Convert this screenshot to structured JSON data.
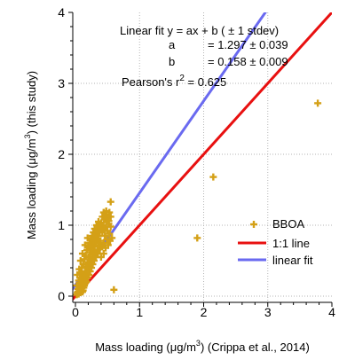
{
  "chart_data": {
    "type": "scatter",
    "xlabel_main": "Mass loading (μg/m",
    "xlabel_sup": "3",
    "xlabel_tail": ") (Crippa et al., 2014)",
    "ylabel_main": "Mass loading (μg/m",
    "ylabel_sup": "3",
    "ylabel_tail": ") (this study)",
    "xlim": [
      -0.05,
      4.0
    ],
    "ylim": [
      -0.05,
      4.0
    ],
    "xticks": [
      0,
      1,
      2,
      3,
      4
    ],
    "yticks": [
      0,
      1,
      2,
      3,
      4
    ],
    "grid": true,
    "legend_position": "lower-right",
    "annotations": {
      "fit_title": "Linear fit y = ax + b  ( ± 1 stdev)",
      "a_label": "a",
      "a_value": "= 1.297 ± 0.039",
      "b_label": "b",
      "b_value": "= 0.158 ± 0.009",
      "r2_prefix": "Pearson's r",
      "r2_sup": "2",
      "r2_value": " = 0.625"
    },
    "series": [
      {
        "name": "BBOA",
        "kind": "marker",
        "color": "#d4a017",
        "points": [
          [
            0.02,
            0.02
          ],
          [
            0.03,
            0.05
          ],
          [
            0.05,
            0.03
          ],
          [
            0.04,
            0.1
          ],
          [
            0.06,
            0.08
          ],
          [
            0.08,
            0.05
          ],
          [
            0.02,
            0.15
          ],
          [
            0.07,
            0.18
          ],
          [
            0.1,
            0.12
          ],
          [
            0.12,
            0.08
          ],
          [
            0.05,
            0.22
          ],
          [
            0.09,
            0.25
          ],
          [
            0.11,
            0.2
          ],
          [
            0.14,
            0.15
          ],
          [
            0.03,
            0.3
          ],
          [
            0.08,
            0.32
          ],
          [
            0.13,
            0.28
          ],
          [
            0.16,
            0.22
          ],
          [
            0.06,
            0.38
          ],
          [
            0.1,
            0.4
          ],
          [
            0.15,
            0.35
          ],
          [
            0.18,
            0.3
          ],
          [
            0.12,
            0.45
          ],
          [
            0.17,
            0.42
          ],
          [
            0.2,
            0.38
          ],
          [
            0.08,
            0.5
          ],
          [
            0.14,
            0.52
          ],
          [
            0.19,
            0.48
          ],
          [
            0.22,
            0.44
          ],
          [
            0.16,
            0.58
          ],
          [
            0.21,
            0.55
          ],
          [
            0.24,
            0.5
          ],
          [
            0.11,
            0.6
          ],
          [
            0.18,
            0.65
          ],
          [
            0.23,
            0.62
          ],
          [
            0.26,
            0.58
          ],
          [
            0.2,
            0.7
          ],
          [
            0.25,
            0.68
          ],
          [
            0.28,
            0.64
          ],
          [
            0.15,
            0.72
          ],
          [
            0.22,
            0.75
          ],
          [
            0.27,
            0.73
          ],
          [
            0.3,
            0.7
          ],
          [
            0.24,
            0.8
          ],
          [
            0.29,
            0.78
          ],
          [
            0.32,
            0.75
          ],
          [
            0.19,
            0.82
          ],
          [
            0.26,
            0.85
          ],
          [
            0.31,
            0.83
          ],
          [
            0.34,
            0.8
          ],
          [
            0.28,
            0.9
          ],
          [
            0.33,
            0.88
          ],
          [
            0.36,
            0.85
          ],
          [
            0.3,
            0.95
          ],
          [
            0.35,
            0.93
          ],
          [
            0.38,
            0.9
          ],
          [
            0.33,
            1.0
          ],
          [
            0.37,
            0.98
          ],
          [
            0.4,
            0.95
          ],
          [
            0.36,
            1.05
          ],
          [
            0.4,
            1.03
          ],
          [
            0.43,
            1.0
          ],
          [
            0.45,
            1.08
          ],
          [
            0.48,
            1.05
          ],
          [
            0.5,
            1.1
          ],
          [
            0.42,
            1.12
          ],
          [
            0.47,
            1.15
          ],
          [
            0.52,
            1.02
          ],
          [
            0.55,
            0.98
          ],
          [
            0.5,
            0.92
          ],
          [
            0.53,
            0.88
          ],
          [
            0.46,
            0.85
          ],
          [
            0.49,
            0.8
          ],
          [
            0.44,
            0.75
          ],
          [
            0.41,
            0.7
          ],
          [
            0.38,
            0.66
          ],
          [
            0.35,
            0.6
          ],
          [
            0.32,
            0.55
          ],
          [
            0.29,
            0.5
          ],
          [
            0.27,
            0.45
          ],
          [
            0.25,
            0.4
          ],
          [
            0.23,
            0.35
          ],
          [
            0.21,
            0.3
          ],
          [
            0.19,
            0.26
          ],
          [
            0.17,
            0.2
          ],
          [
            0.15,
            0.18
          ],
          [
            0.13,
            0.12
          ],
          [
            0.11,
            0.06
          ],
          [
            0.4,
            0.55
          ],
          [
            0.44,
            0.6
          ],
          [
            0.47,
            0.68
          ],
          [
            0.51,
            0.72
          ],
          [
            0.54,
            0.78
          ],
          [
            0.57,
            0.82
          ],
          [
            0.42,
            0.9
          ],
          [
            0.39,
            0.78
          ],
          [
            0.36,
            0.72
          ],
          [
            0.34,
            0.65
          ],
          [
            0.31,
            0.62
          ],
          [
            0.45,
            0.95
          ],
          [
            0.48,
            0.98
          ],
          [
            0.52,
            1.06
          ],
          [
            0.55,
            1.12
          ],
          [
            0.53,
            1.18
          ],
          [
            0.48,
            1.2
          ],
          [
            0.44,
            1.18
          ],
          [
            0.28,
            0.55
          ],
          [
            0.26,
            0.6
          ],
          [
            0.22,
            0.52
          ],
          [
            0.2,
            0.45
          ],
          [
            0.18,
            0.4
          ],
          [
            0.16,
            0.34
          ],
          [
            0.14,
            0.28
          ],
          [
            0.12,
            0.24
          ],
          [
            0.1,
            0.18
          ],
          [
            0.08,
            0.14
          ],
          [
            0.06,
            0.12
          ],
          [
            0.04,
            0.06
          ],
          [
            0.09,
            0.3
          ],
          [
            0.07,
            0.26
          ],
          [
            0.55,
            1.33
          ],
          [
            0.6,
            0.09
          ],
          [
            1.9,
            0.82
          ],
          [
            2.15,
            1.68
          ],
          [
            3.78,
            2.72
          ]
        ]
      },
      {
        "name": "1:1 line",
        "kind": "line",
        "color": "#e81010",
        "slope": 1.0,
        "intercept": 0.0
      },
      {
        "name": "linear fit",
        "kind": "line",
        "color": "#6a6af0",
        "slope": 1.297,
        "intercept": 0.158
      }
    ]
  }
}
